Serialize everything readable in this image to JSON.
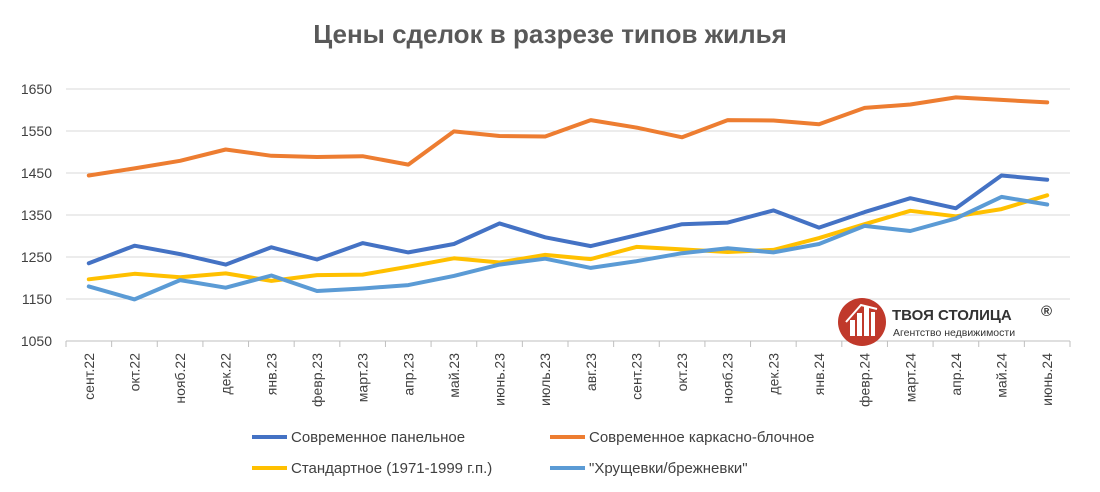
{
  "chart_data": {
    "type": "line",
    "title": "Цены сделок в разрезе типов жилья",
    "xlabel": "",
    "ylabel": "",
    "ylim": [
      1050,
      1700
    ],
    "yticks": [
      1050,
      1150,
      1250,
      1350,
      1450,
      1550,
      1650
    ],
    "grid": true,
    "legend_position": "bottom",
    "categories": [
      "сент.22",
      "окт.22",
      "нояб.22",
      "дек.22",
      "янв.23",
      "февр.23",
      "март.23",
      "апр.23",
      "май.23",
      "июнь.23",
      "июль.23",
      "авг.23",
      "сент.23",
      "окт.23",
      "нояб.23",
      "дек.23",
      "янв.24",
      "февр.24",
      "март.24",
      "апр.24",
      "май.24",
      "июнь.24"
    ],
    "series": [
      {
        "name": "Современное панельное",
        "color": "#4472c4",
        "values": [
          1235,
          1277,
          1257,
          1232,
          1273,
          1244,
          1283,
          1261,
          1281,
          1330,
          1297,
          1276,
          1302,
          1328,
          1332,
          1361,
          1320,
          1357,
          1390,
          1366,
          1444,
          1434
        ]
      },
      {
        "name": "Современное каркасно-блочное",
        "color": "#ed7d31",
        "values": [
          1444,
          1461,
          1479,
          1506,
          1491,
          1488,
          1490,
          1470,
          1549,
          1538,
          1537,
          1576,
          1558,
          1535,
          1576,
          1575,
          1566,
          1605,
          1613,
          1630,
          1624,
          1618
        ]
      },
      {
        "name": "Стандартное (1971-1999 г.п.)",
        "color": "#ffc000",
        "values": [
          1197,
          1210,
          1202,
          1211,
          1193,
          1207,
          1208,
          1227,
          1247,
          1237,
          1255,
          1245,
          1274,
          1268,
          1262,
          1267,
          1295,
          1328,
          1360,
          1347,
          1364,
          1397
        ]
      },
      {
        "name": "\"Хрущевки/брежневки\"",
        "color": "#5b9bd5",
        "values": [
          1180,
          1149,
          1195,
          1177,
          1206,
          1169,
          1175,
          1183,
          1205,
          1232,
          1246,
          1224,
          1240,
          1259,
          1271,
          1261,
          1281,
          1324,
          1312,
          1342,
          1393,
          1375
        ]
      }
    ]
  },
  "logo": {
    "name": "ТВОЯ СТОЛИЦА",
    "mark": "®",
    "tagline": "Агентство недвижимости",
    "color": "#c0392b"
  }
}
